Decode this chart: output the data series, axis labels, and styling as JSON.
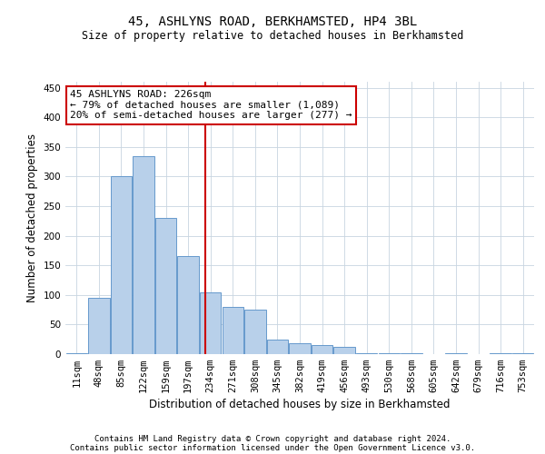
{
  "title1": "45, ASHLYNS ROAD, BERKHAMSTED, HP4 3BL",
  "title2": "Size of property relative to detached houses in Berkhamsted",
  "xlabel": "Distribution of detached houses by size in Berkhamsted",
  "ylabel": "Number of detached properties",
  "footer1": "Contains HM Land Registry data © Crown copyright and database right 2024.",
  "footer2": "Contains public sector information licensed under the Open Government Licence v3.0.",
  "annotation_line1": "45 ASHLYNS ROAD: 226sqm",
  "annotation_line2": "← 79% of detached houses are smaller (1,089)",
  "annotation_line3": "20% of semi-detached houses are larger (277) →",
  "bar_color": "#b8d0ea",
  "bar_edge_color": "#6699cc",
  "marker_line_color": "#cc0000",
  "annotation_box_color": "#ffffff",
  "annotation_box_edge": "#cc0000",
  "background_color": "#ffffff",
  "grid_color": "#c8d4e0",
  "categories": [
    "11sqm",
    "48sqm",
    "85sqm",
    "122sqm",
    "159sqm",
    "197sqm",
    "234sqm",
    "271sqm",
    "308sqm",
    "345sqm",
    "382sqm",
    "419sqm",
    "456sqm",
    "493sqm",
    "530sqm",
    "568sqm",
    "605sqm",
    "642sqm",
    "679sqm",
    "716sqm",
    "753sqm"
  ],
  "values": [
    2,
    95,
    300,
    335,
    230,
    165,
    105,
    80,
    75,
    25,
    18,
    15,
    12,
    2,
    1,
    1,
    0,
    1,
    0,
    1,
    1
  ],
  "ylim": [
    0,
    460
  ],
  "yticks": [
    0,
    50,
    100,
    150,
    200,
    250,
    300,
    350,
    400,
    450
  ],
  "marker_bar_index": 6,
  "title1_fontsize": 10,
  "title2_fontsize": 8.5,
  "ylabel_fontsize": 8.5,
  "xlabel_fontsize": 8.5,
  "tick_fontsize": 7.5,
  "footer_fontsize": 6.5,
  "annot_fontsize": 8
}
